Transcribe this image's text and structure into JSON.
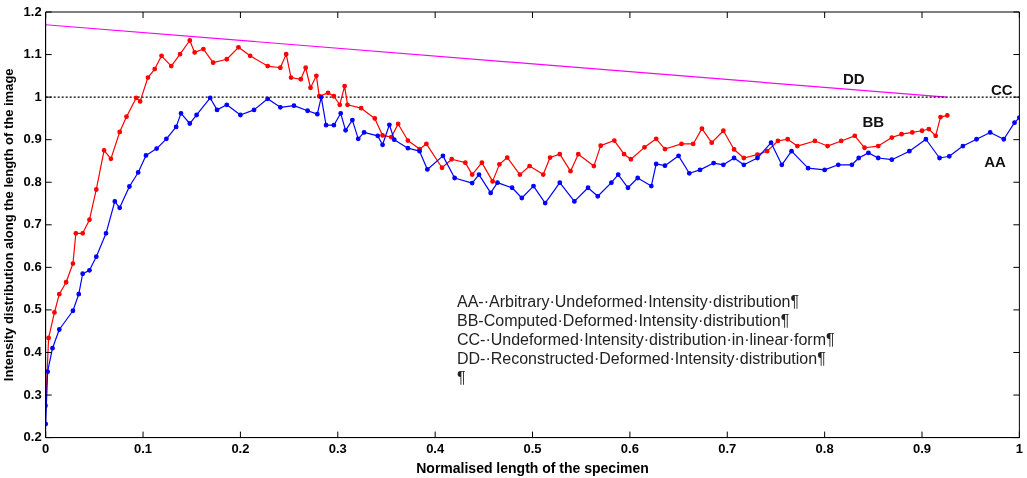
{
  "chart_data": {
    "type": "line",
    "xlabel": "Normalised length of the specimen",
    "ylabel": "Intensity distribution along the length of the image",
    "xlim": [
      0,
      1
    ],
    "ylim": [
      0.2,
      1.2
    ],
    "xticks": [
      0,
      0.1,
      0.2,
      0.3,
      0.4,
      0.5,
      0.6,
      0.7,
      0.8,
      0.9,
      1
    ],
    "yticks": [
      0.2,
      0.3,
      0.4,
      0.5,
      0.6,
      0.7,
      0.8,
      0.9,
      1,
      1.1,
      1.2
    ],
    "grid": false,
    "legend": "right",
    "marker": "circle",
    "series": [
      {
        "name": "AA",
        "color": "#0000ff",
        "x": [
          0,
          0.002,
          0.007,
          0.014,
          0.028,
          0.034,
          0.038,
          0.045,
          0.052,
          0.062,
          0.071,
          0.076,
          0.086,
          0.095,
          0.103,
          0.114,
          0.124,
          0.134,
          0.139,
          0.148,
          0.155,
          0.169,
          0.176,
          0.186,
          0.2,
          0.214,
          0.228,
          0.241,
          0.255,
          0.269,
          0.279,
          0.283,
          0.288,
          0.296,
          0.303,
          0.308,
          0.315,
          0.321,
          0.327,
          0.341,
          0.346,
          0.353,
          0.358,
          0.372,
          0.384,
          0.392,
          0.408,
          0.42,
          0.438,
          0.445,
          0.457,
          0.464,
          0.479,
          0.489,
          0.501,
          0.513,
          0.528,
          0.543,
          0.557,
          0.567,
          0.581,
          0.588,
          0.598,
          0.608,
          0.622,
          0.627,
          0.636,
          0.65,
          0.661,
          0.672,
          0.686,
          0.696,
          0.707,
          0.717,
          0.731,
          0.745,
          0.756,
          0.766,
          0.783,
          0.8,
          0.814,
          0.828,
          0.835,
          0.845,
          0.855,
          0.869,
          0.887,
          0.904,
          0.918,
          0.928,
          0.942,
          0.956,
          0.97,
          0.984,
          0.995,
          1
        ],
        "values": [
          0.232,
          0.355,
          0.41,
          0.454,
          0.498,
          0.537,
          0.585,
          0.593,
          0.625,
          0.68,
          0.755,
          0.74,
          0.79,
          0.823,
          0.863,
          0.879,
          0.902,
          0.93,
          0.962,
          0.938,
          0.958,
          0.998,
          0.97,
          0.982,
          0.958,
          0.97,
          0.996,
          0.976,
          0.98,
          0.968,
          0.96,
          1,
          0.934,
          0.934,
          0.962,
          0.922,
          0.946,
          0.902,
          0.917,
          0.909,
          0.888,
          0.935,
          0.9,
          0.88,
          0.873,
          0.83,
          0.862,
          0.81,
          0.798,
          0.818,
          0.775,
          0.799,
          0.787,
          0.763,
          0.791,
          0.751,
          0.799,
          0.755,
          0.787,
          0.767,
          0.799,
          0.818,
          0.787,
          0.81,
          0.791,
          0.843,
          0.839,
          0.862,
          0.821,
          0.829,
          0.845,
          0.841,
          0.857,
          0.841,
          0.857,
          0.893,
          0.841,
          0.873,
          0.833,
          0.829,
          0.841,
          0.841,
          0.857,
          0.869,
          0.857,
          0.853,
          0.873,
          0.901,
          0.857,
          0.861,
          0.885,
          0.901,
          0.917,
          0.901,
          0.94,
          0.952
        ]
      },
      {
        "name": "BB",
        "color": "#ff0000",
        "x": [
          0,
          0.003,
          0.009,
          0.014,
          0.021,
          0.028,
          0.031,
          0.038,
          0.045,
          0.052,
          0.06,
          0.067,
          0.076,
          0.083,
          0.093,
          0.097,
          0.105,
          0.112,
          0.119,
          0.129,
          0.138,
          0.148,
          0.153,
          0.162,
          0.172,
          0.186,
          0.198,
          0.21,
          0.228,
          0.241,
          0.247,
          0.252,
          0.262,
          0.267,
          0.272,
          0.278,
          0.281,
          0.29,
          0.296,
          0.302,
          0.307,
          0.31,
          0.324,
          0.338,
          0.346,
          0.355,
          0.362,
          0.372,
          0.384,
          0.391,
          0.407,
          0.417,
          0.431,
          0.438,
          0.448,
          0.459,
          0.466,
          0.474,
          0.487,
          0.497,
          0.511,
          0.518,
          0.528,
          0.539,
          0.547,
          0.563,
          0.57,
          0.584,
          0.594,
          0.601,
          0.615,
          0.627,
          0.636,
          0.653,
          0.665,
          0.674,
          0.684,
          0.696,
          0.707,
          0.717,
          0.731,
          0.741,
          0.752,
          0.762,
          0.772,
          0.79,
          0.803,
          0.817,
          0.831,
          0.841,
          0.855,
          0.869,
          0.879,
          0.89,
          0.9,
          0.907,
          0.914,
          0.919,
          0.926
        ],
        "values": [
          0.275,
          0.434,
          0.494,
          0.537,
          0.565,
          0.609,
          0.68,
          0.68,
          0.712,
          0.783,
          0.875,
          0.855,
          0.918,
          0.954,
          0.998,
          0.99,
          1.046,
          1.066,
          1.097,
          1.073,
          1.101,
          1.133,
          1.105,
          1.113,
          1.081,
          1.089,
          1.117,
          1.097,
          1.073,
          1.069,
          1.101,
          1.046,
          1.042,
          1.069,
          1.022,
          1.05,
          1.002,
          1.01,
          1.002,
          0.982,
          1.026,
          0.982,
          0.974,
          0.95,
          0.91,
          0.906,
          0.937,
          0.898,
          0.878,
          0.89,
          0.834,
          0.854,
          0.846,
          0.818,
          0.846,
          0.802,
          0.842,
          0.858,
          0.818,
          0.838,
          0.818,
          0.858,
          0.866,
          0.826,
          0.866,
          0.838,
          0.886,
          0.898,
          0.866,
          0.854,
          0.882,
          0.902,
          0.878,
          0.89,
          0.89,
          0.926,
          0.893,
          0.921,
          0.877,
          0.857,
          0.865,
          0.873,
          0.897,
          0.901,
          0.885,
          0.897,
          0.885,
          0.897,
          0.909,
          0.881,
          0.885,
          0.905,
          0.913,
          0.917,
          0.921,
          0.925,
          0.909,
          0.953,
          0.957
        ]
      },
      {
        "name": "CC",
        "color": "#000000",
        "line_style": "dotted",
        "marker": "none",
        "x": [
          0,
          1
        ],
        "values": [
          1,
          1
        ]
      },
      {
        "name": "DD",
        "color": "#ff00ff",
        "marker": "none",
        "x": [
          0,
          0.925
        ],
        "values": [
          1.17,
          1
        ]
      }
    ],
    "annotations": [
      "AA-·Arbitrary·Undeformed·Intensity·distribution¶",
      "BB-Computed·Deformed·Intensity·distribution¶",
      "CC-·Undeformed·Intensity·distribution·in·linear·form¶",
      "DD-·Reconstructed·Deformed·Intensity·distribution¶",
      "¶"
    ]
  }
}
